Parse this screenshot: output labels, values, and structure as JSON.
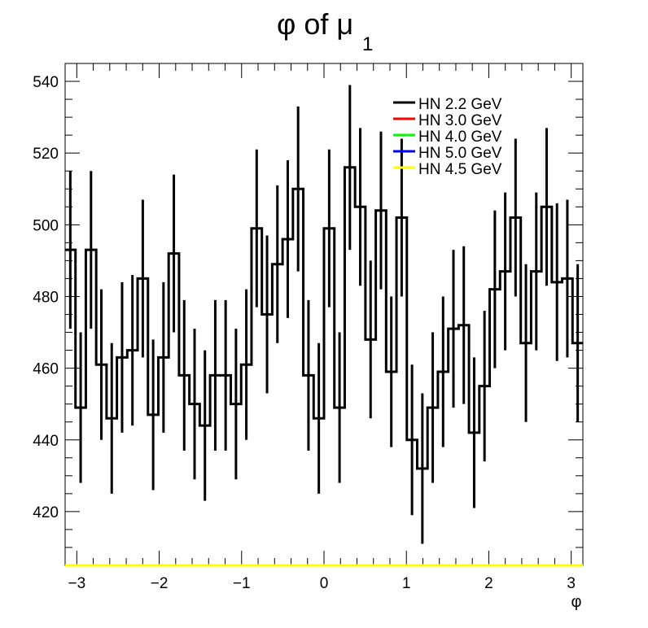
{
  "chart_data": {
    "type": "step-histogram-with-errors",
    "title_main": "φ of μ",
    "title_sub": "1",
    "xlabel": "φ",
    "ylabel": "",
    "xlim": [
      -3.1416,
      3.1416
    ],
    "ylim": [
      405,
      545
    ],
    "x_ticks": [
      -3,
      -2,
      -1,
      0,
      1,
      2,
      3
    ],
    "x_tick_labels": [
      "−3",
      "−2",
      "−1",
      "0",
      "1",
      "2",
      "3"
    ],
    "y_ticks": [
      420,
      440,
      460,
      480,
      500,
      520,
      540
    ],
    "y_tick_labels": [
      "420",
      "440",
      "460",
      "480",
      "500",
      "520",
      "540"
    ],
    "grid": false,
    "legend_position": "top-right",
    "series": [
      {
        "name": "HN 2.2 GeV",
        "color": "#000000",
        "values": [
          493,
          449,
          493,
          461,
          446,
          463,
          465,
          485,
          447,
          463,
          492,
          458,
          450,
          444,
          458,
          458,
          450,
          461,
          499,
          475,
          489,
          496,
          510,
          458,
          446,
          499,
          449,
          516,
          505,
          468,
          504,
          459,
          502,
          440,
          432,
          449,
          459,
          471,
          472,
          442,
          455,
          482,
          487,
          502,
          467,
          487,
          505,
          484,
          485,
          467
        ],
        "errors": [
          22,
          21,
          22,
          21,
          21,
          21,
          21,
          22,
          21,
          21,
          22,
          21,
          21,
          21,
          21,
          21,
          21,
          21,
          22,
          22,
          22,
          22,
          23,
          21,
          21,
          22,
          21,
          23,
          22,
          22,
          22,
          21,
          22,
          21,
          21,
          21,
          21,
          22,
          22,
          21,
          21,
          22,
          22,
          22,
          22,
          22,
          22,
          22,
          22,
          22
        ]
      },
      {
        "name": "HN 3.0 GeV",
        "color": "#ff0000",
        "values": []
      },
      {
        "name": "HN 4.0 GeV",
        "color": "#00ff00",
        "values": []
      },
      {
        "name": "HN 5.0 GeV",
        "color": "#0000ff",
        "values": []
      },
      {
        "name": "HN 4.5 GeV",
        "color": "#ffff00",
        "values": []
      }
    ]
  }
}
